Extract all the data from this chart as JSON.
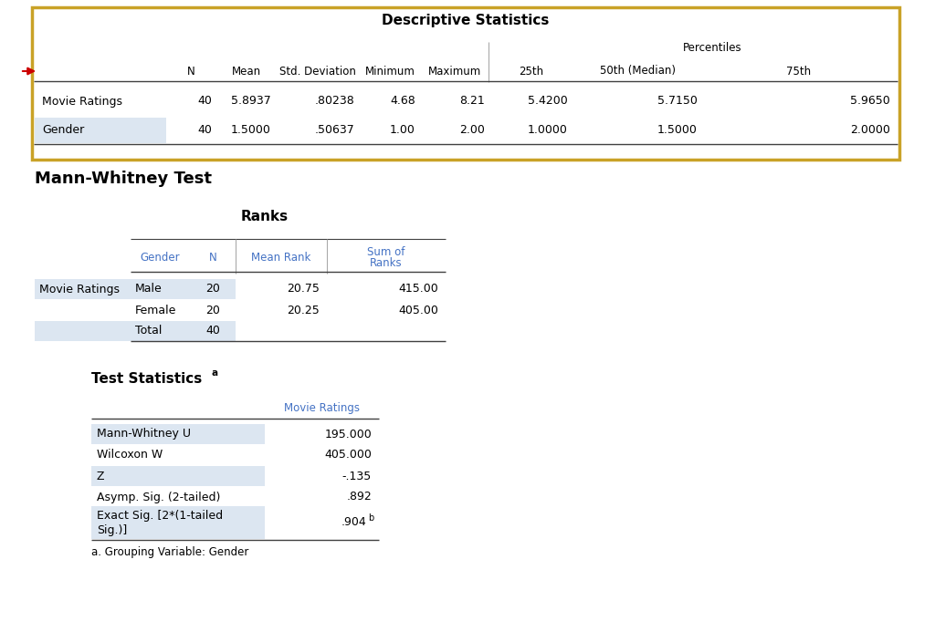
{
  "bg_color": "#ffffff",
  "desc_title": "Descriptive Statistics",
  "desc_rows": [
    [
      "Movie Ratings",
      "40",
      "5.8937",
      ".80238",
      "4.68",
      "8.21",
      "5.4200",
      "5.7150",
      "5.9650"
    ],
    [
      "Gender",
      "40",
      "1.5000",
      ".50637",
      "1.00",
      "2.00",
      "1.0000",
      "1.5000",
      "2.0000"
    ]
  ],
  "section_title": "Mann-Whitney Test",
  "ranks_title": "Ranks",
  "ranks_rows": [
    [
      "Movie Ratings",
      "Male",
      "20",
      "20.75",
      "415.00"
    ],
    [
      "",
      "Female",
      "20",
      "20.25",
      "405.00"
    ],
    [
      "",
      "Total",
      "40",
      "",
      ""
    ]
  ],
  "test_title": "Test Statistics",
  "test_col_header": "Movie Ratings",
  "test_rows": [
    [
      "Mann-Whitney U",
      "195.000",
      false
    ],
    [
      "Wilcoxon W",
      "405.000",
      false
    ],
    [
      "Z",
      "-.135",
      false
    ],
    [
      "Asymp. Sig. (2-tailed)",
      ".892",
      false
    ],
    [
      "Exact Sig. [2*(1-tailed\nSig.)]",
      ".904",
      true
    ]
  ],
  "test_footnote": "a. Grouping Variable: Gender",
  "row_shade": "#dce6f1",
  "desc_border_color": "#c9a227",
  "arrow_color": "#cc0000",
  "text_blue": "#4472C4",
  "line_color": "#808080",
  "dark_line": "#404040"
}
